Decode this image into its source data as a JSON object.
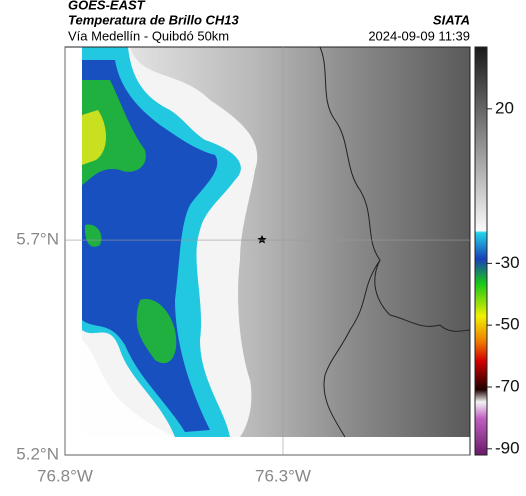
{
  "header": {
    "title": "GOES-EAST",
    "subtitle": "Temperatura de Brillo CH13",
    "location": "Vía Medellín - Quibdó 50km",
    "source": "SIATA",
    "datetime": "2024-09-09 11:39"
  },
  "map": {
    "latlim": [
      5.2,
      6.149
    ],
    "lonlim": [
      -76.8,
      -75.871
    ],
    "latticks": [
      {
        "value": 5.7,
        "label": "5.7°N"
      },
      {
        "value": 5.2,
        "label": "5.2°N"
      }
    ],
    "lonticks": [
      {
        "value": -76.8,
        "label": "76.8°W"
      },
      {
        "value": -76.3,
        "label": "76.3°W"
      }
    ]
  },
  "colorbar": {
    "lim": [
      -92,
      40
    ],
    "ticks": [
      20,
      -30,
      -50,
      -70,
      -90
    ]
  }
}
